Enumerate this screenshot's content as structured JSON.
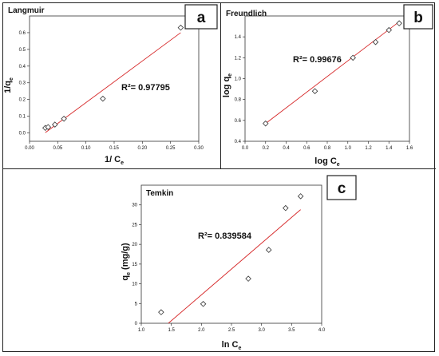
{
  "chart_data": [
    {
      "type": "scatter",
      "panel_letter": "a",
      "title": "Langmuir",
      "xlabel": {
        "main": "1/ C",
        "sub": "e"
      },
      "ylabel": {
        "main": "1/q",
        "sub": "e"
      },
      "xlim": [
        0,
        0.3
      ],
      "ylim": [
        -0.05,
        0.7
      ],
      "xticks": [
        "0.00",
        "0.05",
        "0.10",
        "0.15",
        "0.20",
        "0.25",
        "0.30"
      ],
      "yticks": [
        "0.0",
        "0.1",
        "0.2",
        "0.3",
        "0.4",
        "0.5",
        "0.6"
      ],
      "points": [
        {
          "x": 0.028,
          "y": 0.03
        },
        {
          "x": 0.033,
          "y": 0.035
        },
        {
          "x": 0.045,
          "y": 0.05
        },
        {
          "x": 0.061,
          "y": 0.085
        },
        {
          "x": 0.13,
          "y": 0.205
        },
        {
          "x": 0.268,
          "y": 0.63
        }
      ],
      "fit_line": [
        [
          0.028,
          0.002
        ],
        [
          0.268,
          0.6
        ]
      ],
      "r2_label": "R²= 0.97795",
      "marker": "diamond",
      "line_color": "#d62728"
    },
    {
      "type": "scatter",
      "panel_letter": "b",
      "title": "Freundlich",
      "xlabel": {
        "main": "log C",
        "sub": "e"
      },
      "ylabel": {
        "main": "log q",
        "sub": "e"
      },
      "xlim": [
        0,
        1.6
      ],
      "ylim": [
        0.4,
        1.6
      ],
      "xticks": [
        "0.0",
        "0.2",
        "0.4",
        "0.6",
        "0.8",
        "1.0",
        "1.2",
        "1.4",
        "1.6"
      ],
      "yticks": [
        "0.4",
        "0.6",
        "0.8",
        "1.0",
        "1.2",
        "1.4"
      ],
      "points": [
        {
          "x": 0.2,
          "y": 0.57
        },
        {
          "x": 0.68,
          "y": 0.88
        },
        {
          "x": 1.05,
          "y": 1.2
        },
        {
          "x": 1.27,
          "y": 1.35
        },
        {
          "x": 1.4,
          "y": 1.465
        },
        {
          "x": 1.5,
          "y": 1.53
        }
      ],
      "fit_line": [
        [
          0.2,
          0.57
        ],
        [
          1.5,
          1.545
        ]
      ],
      "r2_label": "R²= 0.99676",
      "marker": "diamond",
      "line_color": "#d62728"
    },
    {
      "type": "scatter",
      "panel_letter": "c",
      "title": "Temkin",
      "xlabel": {
        "main": "ln C",
        "sub": "e"
      },
      "ylabel": {
        "main": "q",
        "sub": "e",
        "suffix": " (mg/g)"
      },
      "xlim": [
        1.0,
        4.0
      ],
      "ylim": [
        0,
        35
      ],
      "xticks": [
        "1.0",
        "1.5",
        "2.0",
        "2.5",
        "3.0",
        "3.5",
        "4.0"
      ],
      "yticks": [
        "0",
        "5",
        "10",
        "15",
        "20",
        "25",
        "30"
      ],
      "points": [
        {
          "x": 1.33,
          "y": 2.8
        },
        {
          "x": 2.03,
          "y": 4.9
        },
        {
          "x": 2.78,
          "y": 11.3
        },
        {
          "x": 3.12,
          "y": 18.6
        },
        {
          "x": 3.4,
          "y": 29.2
        },
        {
          "x": 3.65,
          "y": 32.2
        }
      ],
      "fit_line": [
        [
          1.45,
          0.0
        ],
        [
          3.65,
          28.8
        ]
      ],
      "r2_label": "R²= 0.839584",
      "marker": "diamond",
      "line_color": "#d62728"
    }
  ]
}
